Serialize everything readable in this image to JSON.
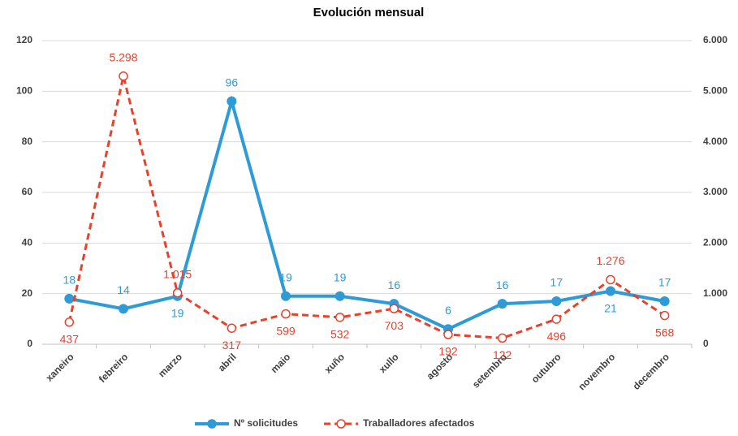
{
  "chart_data": {
    "type": "line",
    "title": "Evolución mensual",
    "categories": [
      "xaneiro",
      "febreiro",
      "marzo",
      "abril",
      "maio",
      "xuño",
      "xullo",
      "agosto",
      "setembro",
      "outubro",
      "novembro",
      "decembro"
    ],
    "series": [
      {
        "name": "Nº solicitudes",
        "color": "#2e9bd6",
        "values": [
          18,
          14,
          19,
          96,
          19,
          19,
          16,
          6,
          16,
          17,
          21,
          17
        ]
      },
      {
        "name": "Traballadores afectados",
        "color": "#e8412c",
        "axis": "y2",
        "values": [
          437,
          5298,
          1015,
          317,
          599,
          532,
          703,
          192,
          122,
          496,
          1276,
          568
        ],
        "value_labels": [
          "437",
          "5.298",
          "1.015",
          "317",
          "599",
          "532",
          "703",
          "192",
          "122",
          "496",
          "1.276",
          "568"
        ]
      }
    ],
    "ylim": [
      0,
      120
    ],
    "yticks": [
      0,
      20,
      40,
      60,
      80,
      100,
      120
    ],
    "y2lim": [
      0,
      6000
    ],
    "y2ticks": [
      0,
      {
        "value": 1000,
        "label": "1.000"
      },
      {
        "value": 2000,
        "label": "2.000"
      },
      {
        "value": 3000,
        "label": "3.000"
      },
      {
        "value": 4000,
        "label": "4.000"
      },
      {
        "value": 5000,
        "label": "5.000"
      },
      {
        "value": 6000,
        "label": "6.000"
      }
    ],
    "grid": true,
    "legend": "bottom"
  }
}
